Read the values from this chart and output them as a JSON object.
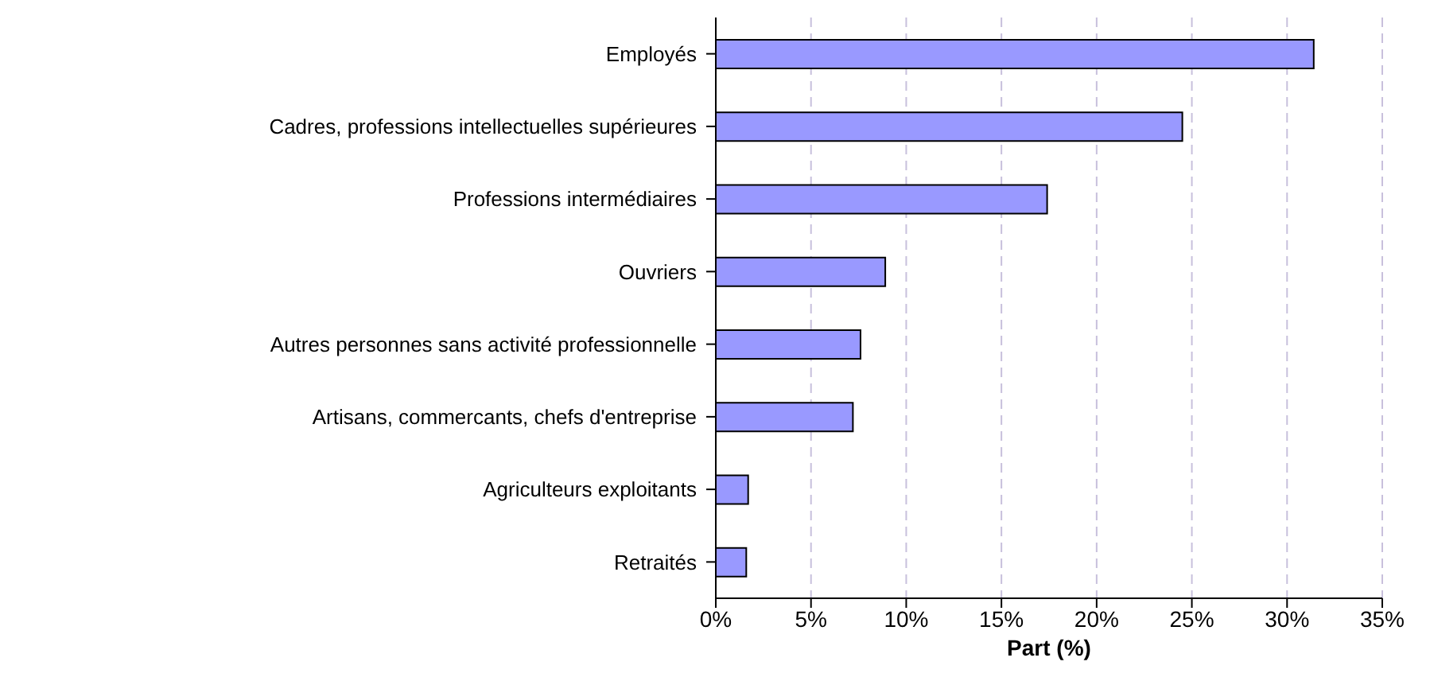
{
  "chart_data": {
    "type": "bar",
    "orientation": "horizontal",
    "xlabel": "Part (%)",
    "categories": [
      "Employés",
      "Cadres, professions intellectuelles supérieures",
      "Professions intermédiaires",
      "Ouvriers",
      "Autres personnes sans activité professionnelle",
      "Artisans, commercants, chefs d'entreprise",
      "Agriculteurs exploitants",
      "Retraités"
    ],
    "values": [
      31.4,
      24.5,
      17.4,
      8.9,
      7.6,
      7.2,
      1.7,
      1.6
    ],
    "color": "#9999ff",
    "xlim": [
      0,
      35
    ],
    "xticks": [
      {
        "value": 0,
        "label": "0%"
      },
      {
        "value": 5,
        "label": "5%"
      },
      {
        "value": 10,
        "label": "10%"
      },
      {
        "value": 15,
        "label": "15%"
      },
      {
        "value": 20,
        "label": "20%"
      },
      {
        "value": 25,
        "label": "25%"
      },
      {
        "value": 30,
        "label": "30%"
      },
      {
        "value": 35,
        "label": "35%"
      }
    ],
    "grid": "x"
  }
}
